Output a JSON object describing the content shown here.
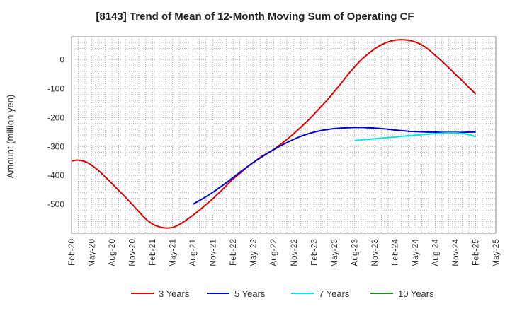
{
  "chart_data": {
    "type": "line",
    "title": "[8143]  Trend of Mean of 12-Month Moving Sum of Operating CF",
    "xlabel": "",
    "ylabel": "Amount (million yen)",
    "ylim": [
      -600,
      80
    ],
    "yticks": [
      0,
      -100,
      -200,
      -300,
      -400,
      -500
    ],
    "x_tick_labels": [
      "Feb-20",
      "May-20",
      "Aug-20",
      "Nov-20",
      "Feb-21",
      "May-21",
      "Aug-21",
      "Nov-21",
      "Feb-22",
      "May-22",
      "Aug-22",
      "Nov-22",
      "Feb-23",
      "May-23",
      "Aug-23",
      "Nov-23",
      "Feb-24",
      "May-24",
      "Aug-24",
      "Nov-24",
      "Feb-25",
      "May-25"
    ],
    "x_unit": "months since Feb-20",
    "grid": true,
    "legend_position": "bottom",
    "series": [
      {
        "name": "3 Years",
        "color": "#dd0000",
        "points": [
          [
            0,
            -350
          ],
          [
            1,
            -347
          ],
          [
            2,
            -352
          ],
          [
            3,
            -365
          ],
          [
            4,
            -383
          ],
          [
            5,
            -405
          ],
          [
            6,
            -428
          ],
          [
            7,
            -452
          ],
          [
            8,
            -475
          ],
          [
            9,
            -500
          ],
          [
            10,
            -525
          ],
          [
            11,
            -550
          ],
          [
            12,
            -568
          ],
          [
            13,
            -578
          ],
          [
            14,
            -582
          ],
          [
            15,
            -580
          ],
          [
            16,
            -570
          ],
          [
            17,
            -555
          ],
          [
            18,
            -538
          ],
          [
            19,
            -520
          ],
          [
            20,
            -500
          ],
          [
            21,
            -480
          ],
          [
            22,
            -458
          ],
          [
            23,
            -435
          ],
          [
            24,
            -412
          ],
          [
            25,
            -393
          ],
          [
            26,
            -372
          ],
          [
            27,
            -355
          ],
          [
            28,
            -338
          ],
          [
            29,
            -324
          ],
          [
            30,
            -310
          ],
          [
            31,
            -293
          ],
          [
            32,
            -275
          ],
          [
            33,
            -255
          ],
          [
            34,
            -234
          ],
          [
            35,
            -212
          ],
          [
            36,
            -188
          ],
          [
            37,
            -163
          ],
          [
            38,
            -138
          ],
          [
            39,
            -110
          ],
          [
            40,
            -82
          ],
          [
            41,
            -52
          ],
          [
            42,
            -25
          ],
          [
            43,
            0
          ],
          [
            44,
            20
          ],
          [
            45,
            38
          ],
          [
            46,
            52
          ],
          [
            47,
            62
          ],
          [
            48,
            68
          ],
          [
            49,
            70
          ],
          [
            50,
            68
          ],
          [
            51,
            62
          ],
          [
            52,
            52
          ],
          [
            53,
            36
          ],
          [
            54,
            16
          ],
          [
            55,
            -5
          ],
          [
            56,
            -27
          ],
          [
            57,
            -50
          ],
          [
            58,
            -72
          ],
          [
            59,
            -95
          ],
          [
            60,
            -118
          ]
        ]
      },
      {
        "name": "5 Years",
        "color": "#0000cc",
        "points": [
          [
            18,
            -500
          ],
          [
            19,
            -487
          ],
          [
            20,
            -473
          ],
          [
            21,
            -458
          ],
          [
            22,
            -442
          ],
          [
            23,
            -425
          ],
          [
            24,
            -407
          ],
          [
            25,
            -389
          ],
          [
            26,
            -372
          ],
          [
            27,
            -355
          ],
          [
            28,
            -340
          ],
          [
            29,
            -325
          ],
          [
            30,
            -311
          ],
          [
            31,
            -298
          ],
          [
            32,
            -286
          ],
          [
            33,
            -275
          ],
          [
            34,
            -265
          ],
          [
            35,
            -257
          ],
          [
            36,
            -250
          ],
          [
            37,
            -245
          ],
          [
            38,
            -241
          ],
          [
            39,
            -238
          ],
          [
            40,
            -236
          ],
          [
            41,
            -235
          ],
          [
            42,
            -234
          ],
          [
            43,
            -234
          ],
          [
            44,
            -235
          ],
          [
            45,
            -236
          ],
          [
            46,
            -238
          ],
          [
            47,
            -240
          ],
          [
            48,
            -243
          ],
          [
            49,
            -245
          ],
          [
            50,
            -247
          ],
          [
            51,
            -248
          ],
          [
            52,
            -249
          ],
          [
            53,
            -250
          ],
          [
            54,
            -250
          ],
          [
            55,
            -251
          ],
          [
            56,
            -251
          ],
          [
            57,
            -251
          ],
          [
            58,
            -251
          ],
          [
            59,
            -250
          ],
          [
            60,
            -250
          ]
        ]
      },
      {
        "name": "7 Years",
        "color": "#00e5e5",
        "points": [
          [
            42,
            -280
          ],
          [
            43,
            -277
          ],
          [
            44,
            -275
          ],
          [
            45,
            -273
          ],
          [
            46,
            -271
          ],
          [
            47,
            -269
          ],
          [
            48,
            -267
          ],
          [
            49,
            -265
          ],
          [
            50,
            -263
          ],
          [
            51,
            -261
          ],
          [
            52,
            -259
          ],
          [
            53,
            -257
          ],
          [
            54,
            -255
          ],
          [
            55,
            -254
          ],
          [
            56,
            -253
          ],
          [
            57,
            -253
          ],
          [
            58,
            -255
          ],
          [
            59,
            -259
          ],
          [
            60,
            -266
          ]
        ]
      },
      {
        "name": "10 Years",
        "color": "#228822",
        "points": []
      }
    ]
  }
}
